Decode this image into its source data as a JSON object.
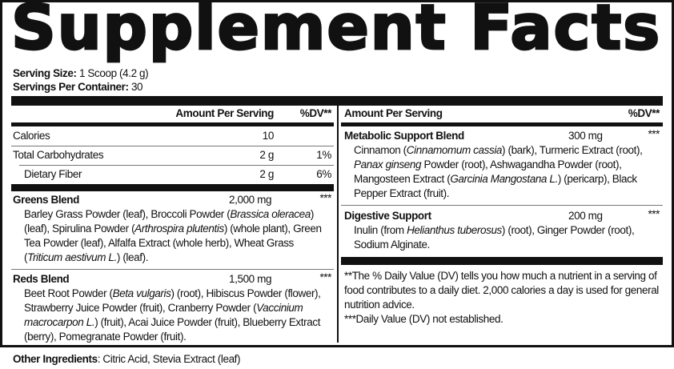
{
  "title": "Supplement Facts",
  "serving": {
    "size_label": "Serving Size:",
    "size_value": "1 Scoop (4.2 g)",
    "per_container_label": "Servings Per Container:",
    "per_container_value": "30"
  },
  "left": {
    "header": {
      "amount": "Amount Per Serving",
      "dv": "%DV**"
    },
    "rows": [
      {
        "name": "Calories",
        "amount": "10",
        "dv": ""
      },
      {
        "name": "Total Carbohydrates",
        "amount": "2 g",
        "dv": "1%"
      },
      {
        "name": "Dietary Fiber",
        "amount": "2 g",
        "dv": "6%"
      }
    ],
    "blends": [
      {
        "name": "Greens Blend",
        "amount": "2,000 mg",
        "dv": "***",
        "ingredients": "Barley Grass Powder (leaf), Broccoli Powder (<i>Brassica oleracea</i>) (leaf), Spirulina Powder (<i>Arthrospira plutentis</i>) (whole plant), Green Tea Powder (leaf), Alfalfa Extract (whole herb), Wheat Grass (<i>Triticum aestivum L.</i>) (leaf)."
      },
      {
        "name": "Reds Blend",
        "amount": "1,500 mg",
        "dv": "***",
        "ingredients": "Beet Root Powder (<i>Beta vulgaris</i>) (root), Hibiscus Powder (flower), Strawberry Juice Powder (fruit), Cranberry Powder (<i>Vaccinium macrocarpon L.</i>) (fruit), Acai Juice Powder (fruit), Blueberry Extract (berry), Pomegranate Powder (fruit)."
      }
    ]
  },
  "right": {
    "header": {
      "amount": "Amount Per Serving",
      "dv": "%DV**"
    },
    "blends": [
      {
        "name": "Metabolic Support Blend",
        "amount": "300 mg",
        "dv": "***",
        "ingredients": "Cinnamon (<i>Cinnamomum cassia</i>) (bark), Turmeric Extract (root), <i>Panax ginseng</i> Powder (root), Ashwagandha Powder (root), Mangosteen Extract (<i>Garcinia Mangostana L.</i>) (pericarp), Black Pepper Extract (fruit)."
      },
      {
        "name": "Digestive Support",
        "amount": "200 mg",
        "dv": "***",
        "ingredients": "Inulin (from <i>Helianthus tuberosus</i>) (root), Ginger Powder (root), Sodium Alginate."
      }
    ],
    "footnotes": [
      "**The % Daily Value (DV) tells you how much a nutrient in a serving of food contributes to a daily diet. 2,000 calories a day is used for general nutrition advice.",
      "***Daily Value (DV) not established."
    ]
  },
  "other_ingredients": {
    "label": "Other Ingredients",
    "value": ": Citric Acid, Stevia Extract (leaf)"
  }
}
